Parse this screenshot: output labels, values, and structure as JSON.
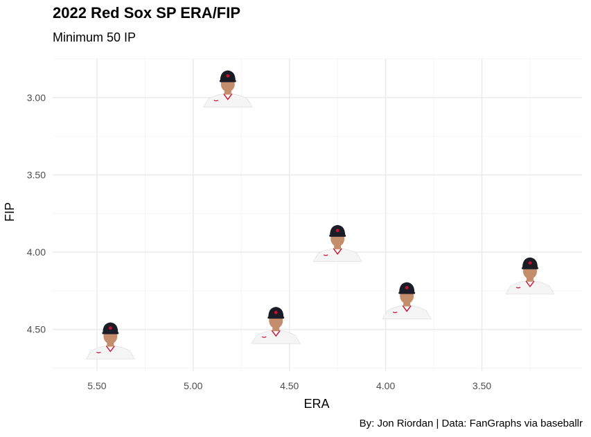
{
  "chart_data": {
    "type": "scatter",
    "title": "2022 Red Sox SP ERA/FIP",
    "subtitle": "Minimum 50 IP",
    "caption": "By: Jon Riordan | Data: FanGraphs via baseballr",
    "xlabel": "ERA",
    "ylabel": "FIP",
    "x_reversed": true,
    "y_reversed": true,
    "xlim": [
      5.73,
      2.98
    ],
    "ylim": [
      2.75,
      4.77
    ],
    "x_ticks": [
      "5.50",
      "5.00",
      "4.50",
      "4.00",
      "3.50"
    ],
    "y_ticks": [
      "3.00",
      "3.50",
      "4.00",
      "4.50"
    ],
    "grid": true,
    "marker": "player-headshot",
    "points": [
      {
        "x": 4.82,
        "y": 2.99
      },
      {
        "x": 4.25,
        "y": 3.99
      },
      {
        "x": 3.89,
        "y": 4.36
      },
      {
        "x": 3.25,
        "y": 4.2
      },
      {
        "x": 4.57,
        "y": 4.52
      },
      {
        "x": 5.43,
        "y": 4.62
      }
    ]
  },
  "colors": {
    "cap": "#1a1c26",
    "logo": "#c8102e",
    "skin": "#c48d6b",
    "jersey": "#f5f5f5",
    "grid_major": "#ebebeb",
    "grid_minor": "#f4f4f4"
  }
}
